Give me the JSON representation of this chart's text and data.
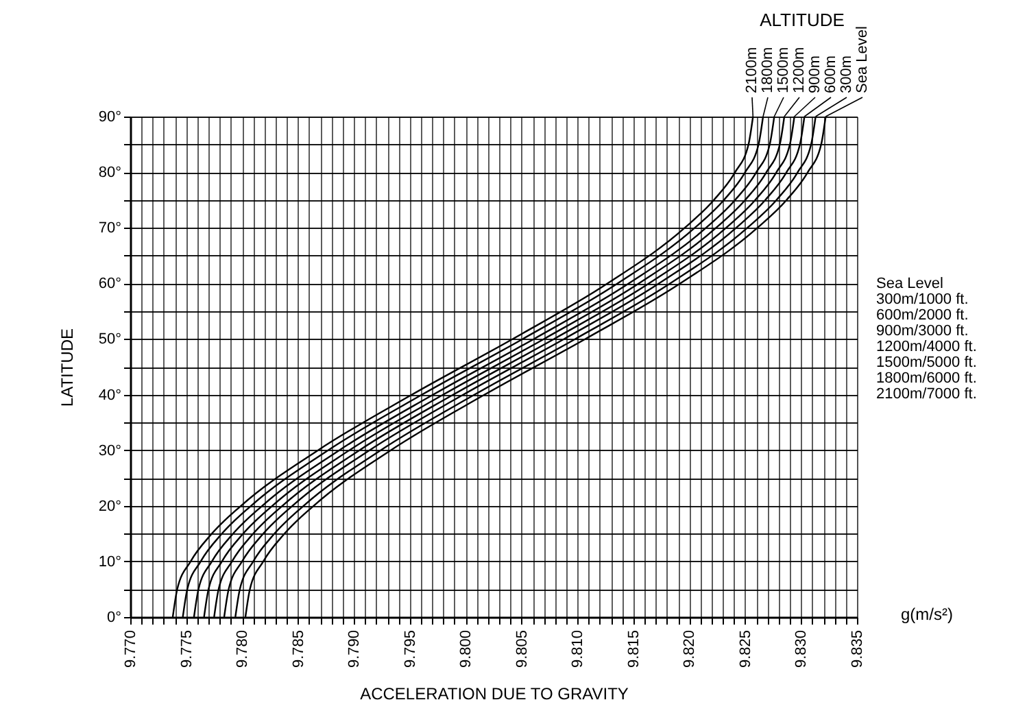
{
  "chart_data": {
    "type": "line",
    "xlabel": "ACCELERATION DUE TO GRAVITY",
    "ylabel": "LATITUDE",
    "annotations": [
      "ALTITUDE",
      "Sea Level",
      "300m/1000 ft.",
      "600m/2000 ft.",
      "900m/3000 ft.",
      "1200m/4000 ft.",
      "1500m/5000 ft.",
      "1800m/6000 ft.",
      "2100m/7000 ft.",
      "g(m/s²)"
    ],
    "series": [
      {
        "name": "Sea Level",
        "color": "#000000",
        "x": [
          9.7803,
          9.7807,
          9.7819,
          9.7838,
          9.7864,
          9.7933,
          9.8017,
          9.8107,
          9.8192,
          9.8261,
          9.8287,
          9.8306,
          9.8318,
          9.8322
        ],
        "values": [
          0,
          5,
          10,
          15,
          20,
          30,
          40,
          50,
          60,
          70,
          75,
          80,
          85,
          90
        ]
      },
      {
        "name": "300m",
        "color": "#000000",
        "x": [
          9.7794,
          9.7798,
          9.781,
          9.7829,
          9.7855,
          9.7924,
          9.8008,
          9.8098,
          9.8183,
          9.8252,
          9.8278,
          9.8297,
          9.8309,
          9.8313
        ],
        "values": [
          0,
          5,
          10,
          15,
          20,
          30,
          40,
          50,
          60,
          70,
          75,
          80,
          85,
          90
        ]
      },
      {
        "name": "600m",
        "color": "#000000",
        "x": [
          9.7784,
          9.7788,
          9.78,
          9.7819,
          9.7845,
          9.7914,
          9.7998,
          9.8088,
          9.8173,
          9.8242,
          9.8268,
          9.8287,
          9.8299,
          9.8303
        ],
        "values": [
          0,
          5,
          10,
          15,
          20,
          30,
          40,
          50,
          60,
          70,
          75,
          80,
          85,
          90
        ]
      },
      {
        "name": "900m",
        "color": "#000000",
        "x": [
          9.7775,
          9.7779,
          9.7791,
          9.781,
          9.7836,
          9.7905,
          9.7989,
          9.8079,
          9.8164,
          9.8233,
          9.8259,
          9.8278,
          9.829,
          9.8294
        ],
        "values": [
          0,
          5,
          10,
          15,
          20,
          30,
          40,
          50,
          60,
          70,
          75,
          80,
          85,
          90
        ]
      },
      {
        "name": "1200m",
        "color": "#000000",
        "x": [
          9.7766,
          9.777,
          9.7782,
          9.7801,
          9.7827,
          9.7896,
          9.798,
          9.807,
          9.8155,
          9.8224,
          9.825,
          9.8269,
          9.8281,
          9.8285
        ],
        "values": [
          0,
          5,
          10,
          15,
          20,
          30,
          40,
          50,
          60,
          70,
          75,
          80,
          85,
          90
        ]
      },
      {
        "name": "1500m",
        "color": "#000000",
        "x": [
          9.7757,
          9.7761,
          9.7773,
          9.7792,
          9.7818,
          9.7887,
          9.7971,
          9.8061,
          9.8146,
          9.8215,
          9.8241,
          9.826,
          9.8272,
          9.8276
        ],
        "values": [
          0,
          5,
          10,
          15,
          20,
          30,
          40,
          50,
          60,
          70,
          75,
          80,
          85,
          90
        ]
      },
      {
        "name": "1800m",
        "color": "#000000",
        "x": [
          9.7747,
          9.7751,
          9.7763,
          9.7782,
          9.7808,
          9.7877,
          9.7961,
          9.8051,
          9.8136,
          9.8205,
          9.8231,
          9.825,
          9.8262,
          9.8266
        ],
        "values": [
          0,
          5,
          10,
          15,
          20,
          30,
          40,
          50,
          60,
          70,
          75,
          80,
          85,
          90
        ]
      },
      {
        "name": "2100m",
        "color": "#000000",
        "x": [
          9.7738,
          9.7742,
          9.7754,
          9.7773,
          9.7799,
          9.7868,
          9.7952,
          9.8042,
          9.8127,
          9.8196,
          9.8222,
          9.8241,
          9.8253,
          9.8257
        ],
        "values": [
          0,
          5,
          10,
          15,
          20,
          30,
          40,
          50,
          60,
          70,
          75,
          80,
          85,
          90
        ]
      }
    ],
    "xlim": [
      9.77,
      9.835
    ],
    "xticks": [
      {
        "value": 9.77,
        "label": "9.770"
      },
      {
        "value": 9.771,
        "label": null
      },
      {
        "value": 9.772,
        "label": null
      },
      {
        "value": 9.773,
        "label": null
      },
      {
        "value": 9.774,
        "label": null
      },
      {
        "value": 9.775,
        "label": "9.775"
      },
      {
        "value": 9.776,
        "label": null
      },
      {
        "value": 9.777,
        "label": null
      },
      {
        "value": 9.778,
        "label": null
      },
      {
        "value": 9.779,
        "label": null
      },
      {
        "value": 9.78,
        "label": "9.780"
      },
      {
        "value": 9.781,
        "label": null
      },
      {
        "value": 9.782,
        "label": null
      },
      {
        "value": 9.783,
        "label": null
      },
      {
        "value": 9.784,
        "label": null
      },
      {
        "value": 9.785,
        "label": "9.785"
      },
      {
        "value": 9.786,
        "label": null
      },
      {
        "value": 9.787,
        "label": null
      },
      {
        "value": 9.788,
        "label": null
      },
      {
        "value": 9.789,
        "label": null
      },
      {
        "value": 9.79,
        "label": "9.790"
      },
      {
        "value": 9.791,
        "label": null
      },
      {
        "value": 9.792,
        "label": null
      },
      {
        "value": 9.793,
        "label": null
      },
      {
        "value": 9.794,
        "label": null
      },
      {
        "value": 9.795,
        "label": "9.795"
      },
      {
        "value": 9.796,
        "label": null
      },
      {
        "value": 9.797,
        "label": null
      },
      {
        "value": 9.798,
        "label": null
      },
      {
        "value": 9.799,
        "label": null
      },
      {
        "value": 9.8,
        "label": "9.800"
      },
      {
        "value": 9.801,
        "label": null
      },
      {
        "value": 9.802,
        "label": null
      },
      {
        "value": 9.803,
        "label": null
      },
      {
        "value": 9.804,
        "label": null
      },
      {
        "value": 9.805,
        "label": "9.805"
      },
      {
        "value": 9.806,
        "label": null
      },
      {
        "value": 9.807,
        "label": null
      },
      {
        "value": 9.808,
        "label": null
      },
      {
        "value": 9.809,
        "label": null
      },
      {
        "value": 9.81,
        "label": "9.810"
      },
      {
        "value": 9.811,
        "label": null
      },
      {
        "value": 9.812,
        "label": null
      },
      {
        "value": 9.813,
        "label": null
      },
      {
        "value": 9.814,
        "label": null
      },
      {
        "value": 9.815,
        "label": "9.815"
      },
      {
        "value": 9.816,
        "label": null
      },
      {
        "value": 9.817,
        "label": null
      },
      {
        "value": 9.818,
        "label": null
      },
      {
        "value": 9.819,
        "label": null
      },
      {
        "value": 9.82,
        "label": "9.820"
      },
      {
        "value": 9.821,
        "label": null
      },
      {
        "value": 9.822,
        "label": null
      },
      {
        "value": 9.823,
        "label": null
      },
      {
        "value": 9.824,
        "label": null
      },
      {
        "value": 9.825,
        "label": "9.825"
      },
      {
        "value": 9.826,
        "label": null
      },
      {
        "value": 9.827,
        "label": null
      },
      {
        "value": 9.828,
        "label": null
      },
      {
        "value": 9.829,
        "label": null
      },
      {
        "value": 9.83,
        "label": "9.830"
      },
      {
        "value": 9.831,
        "label": null
      },
      {
        "value": 9.832,
        "label": null
      },
      {
        "value": 9.833,
        "label": null
      },
      {
        "value": 9.834,
        "label": null
      },
      {
        "value": 9.835,
        "label": "9.835"
      }
    ],
    "ylim": [
      0,
      90
    ],
    "yticks": [
      {
        "value": 0,
        "label": "0°"
      },
      {
        "value": 5,
        "label": null
      },
      {
        "value": 10,
        "label": "10°"
      },
      {
        "value": 15,
        "label": null
      },
      {
        "value": 20,
        "label": "20°"
      },
      {
        "value": 25,
        "label": null
      },
      {
        "value": 30,
        "label": "30°"
      },
      {
        "value": 35,
        "label": null
      },
      {
        "value": 40,
        "label": "40°"
      },
      {
        "value": 45,
        "label": null
      },
      {
        "value": 50,
        "label": "50°"
      },
      {
        "value": 55,
        "label": null
      },
      {
        "value": 60,
        "label": "60°"
      },
      {
        "value": 65,
        "label": null
      },
      {
        "value": 70,
        "label": "70°"
      },
      {
        "value": 75,
        "label": null
      },
      {
        "value": 80,
        "label": "80°"
      },
      {
        "value": 85,
        "label": null
      },
      {
        "value": 90,
        "label": "90°"
      }
    ],
    "grid": true,
    "legend": false,
    "marker": "none",
    "line_style": "solid"
  }
}
